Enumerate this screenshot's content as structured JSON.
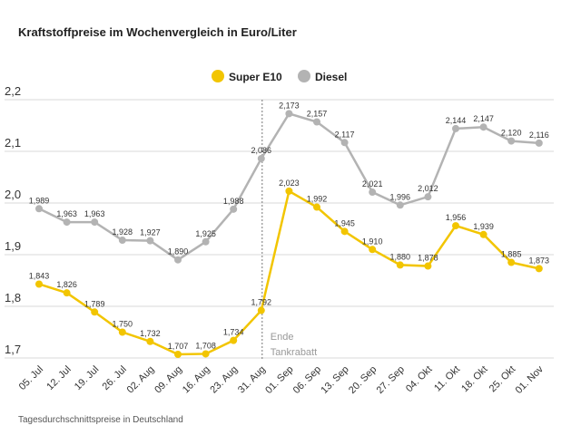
{
  "chart_data": {
    "type": "line",
    "title": "Kraftstoffpreise im Wochenvergleich in Euro/Liter",
    "footnote": "Tagesdurchschnittspreise in Deutschland",
    "categories": [
      "05. Jul",
      "12. Jul",
      "19. Jul",
      "26. Jul",
      "02. Aug",
      "09. Aug",
      "16. Aug",
      "23. Aug",
      "31. Aug",
      "01. Sep",
      "06. Sep",
      "13. Sep",
      "20. Sep",
      "27. Sep",
      "04. Okt",
      "11. Okt",
      "18. Okt",
      "25. Okt",
      "01. Nov"
    ],
    "yticks": [
      "2,2",
      "2,1",
      "2,0",
      "1,9",
      "1,8",
      "1,7"
    ],
    "ylim": [
      1.7,
      2.2
    ],
    "grid": true,
    "legend_placement": "top-center",
    "series": [
      {
        "name": "Super E10",
        "color": "#f2c500",
        "values": [
          1.843,
          1.826,
          1.789,
          1.75,
          1.732,
          1.707,
          1.708,
          1.734,
          1.792,
          2.023,
          1.992,
          1.945,
          1.91,
          1.88,
          1.878,
          1.956,
          1.939,
          1.885,
          1.873
        ]
      },
      {
        "name": "Diesel",
        "color": "#b3b3b3",
        "values": [
          1.989,
          1.963,
          1.963,
          1.928,
          1.927,
          1.89,
          1.925,
          1.988,
          2.086,
          2.173,
          2.157,
          2.117,
          2.021,
          1.996,
          2.012,
          2.144,
          2.147,
          2.12,
          2.116
        ]
      }
    ],
    "annotation": {
      "category": "31. Aug",
      "lines": [
        "Ende",
        "Tankrabatt"
      ]
    }
  }
}
